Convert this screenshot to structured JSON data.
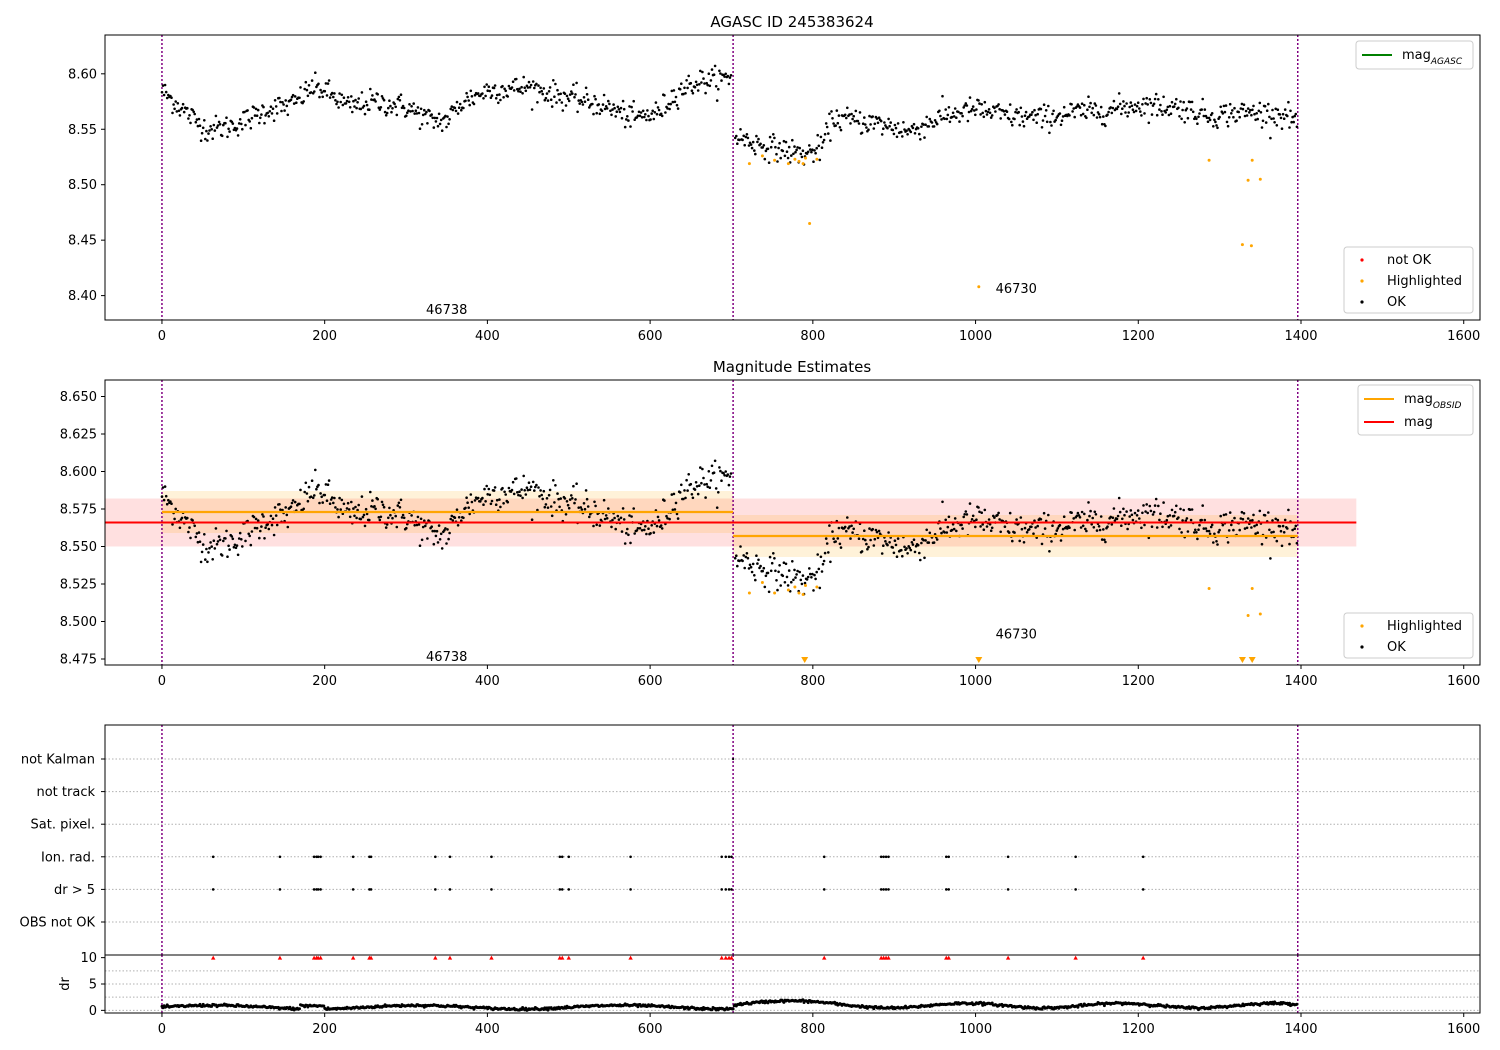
{
  "figure": {
    "colors": {
      "ok": "#000000",
      "highlighted": "#ffa500",
      "not_ok": "#ff0000",
      "mag_agasc": "#008000",
      "obsid_band": "#ffa500",
      "mag_band": "#ff0000",
      "obs_boundary": "#800080",
      "grid": "#b0b0b0"
    }
  },
  "chart_data": [
    {
      "id": "top",
      "type": "scatter",
      "title": "AGASC ID 245383624",
      "xlim": [
        -70,
        1620
      ],
      "ylim": [
        8.378,
        8.635
      ],
      "xticks": [
        0,
        200,
        400,
        600,
        800,
        1000,
        1200,
        1400,
        1600
      ],
      "yticks": [
        8.4,
        8.45,
        8.5,
        8.55,
        8.6
      ],
      "ytick_labels": [
        "8.40",
        "8.45",
        "8.50",
        "8.55",
        "8.60"
      ],
      "obs_boundaries": [
        0,
        702,
        1396
      ],
      "obs_labels": [
        {
          "text": "46738",
          "x": 350,
          "y": 8.388
        },
        {
          "text": "46730",
          "x": 1050,
          "y": 8.407
        }
      ],
      "legend_top": {
        "entries": [
          "mag_AGASC"
        ],
        "location": "top-right"
      },
      "legend_bottom": {
        "entries": [
          "not OK",
          "Highlighted",
          "OK"
        ],
        "location": "lower-right"
      },
      "highlighted_points": [
        [
          722,
          8.519
        ],
        [
          738,
          8.526
        ],
        [
          753,
          8.522
        ],
        [
          770,
          8.519
        ],
        [
          778,
          8.523
        ],
        [
          783,
          8.521
        ],
        [
          788,
          8.519
        ],
        [
          791,
          8.524
        ],
        [
          796,
          8.465
        ],
        [
          805,
          8.523
        ],
        [
          1004,
          8.408
        ],
        [
          1287,
          8.522
        ],
        [
          1328,
          8.446
        ],
        [
          1335,
          8.504
        ],
        [
          1339,
          8.445
        ],
        [
          1340,
          8.522
        ],
        [
          1350,
          8.505
        ]
      ]
    },
    {
      "id": "middle",
      "type": "scatter",
      "title": "Magnitude Estimates",
      "xlim": [
        -70,
        1620
      ],
      "ylim": [
        8.471,
        8.661
      ],
      "xticks": [
        0,
        200,
        400,
        600,
        800,
        1000,
        1200,
        1400,
        1600
      ],
      "yticks": [
        8.475,
        8.5,
        8.525,
        8.55,
        8.575,
        8.6,
        8.625,
        8.65
      ],
      "ytick_labels": [
        "8.475",
        "8.500",
        "8.525",
        "8.550",
        "8.575",
        "8.600",
        "8.625",
        "8.650"
      ],
      "obs_boundaries": [
        0,
        702,
        1396
      ],
      "obs_labels": [
        {
          "text": "46738",
          "x": 350,
          "y": 8.477
        },
        {
          "text": "46730",
          "x": 1050,
          "y": 8.492
        }
      ],
      "mag": {
        "value": 8.566,
        "band": [
          8.55,
          8.582
        ],
        "x_range": [
          -70,
          1468
        ]
      },
      "obsid_segments": [
        {
          "x0": 0,
          "x1": 702,
          "mag": 8.573,
          "band": [
            8.559,
            8.587
          ]
        },
        {
          "x0": 702,
          "x1": 1396,
          "mag": 8.557,
          "band": [
            8.543,
            8.571
          ]
        }
      ],
      "legend_top": {
        "entries": [
          "mag_OBSID",
          "mag"
        ],
        "location": "top-right"
      },
      "legend_bottom": {
        "entries": [
          "Highlighted",
          "OK"
        ],
        "location": "lower-right"
      },
      "highlighted_points": [
        [
          722,
          8.519
        ],
        [
          738,
          8.526
        ],
        [
          753,
          8.519
        ],
        [
          770,
          8.521
        ],
        [
          778,
          8.523
        ],
        [
          783,
          8.519
        ],
        [
          788,
          8.518
        ],
        [
          791,
          8.524
        ],
        [
          805,
          8.523
        ],
        [
          1287,
          8.522
        ],
        [
          1335,
          8.504
        ],
        [
          1340,
          8.522
        ],
        [
          1350,
          8.505
        ]
      ],
      "lower_limit_markers_x": [
        790,
        1004,
        1328,
        1340
      ]
    },
    {
      "id": "flags",
      "type": "scatter",
      "xlim": [
        -70,
        1620
      ],
      "yticks": [
        "not Kalman",
        "not track",
        "Sat. pixel.",
        "Ion. rad.",
        "dr > 5",
        "OBS not OK"
      ],
      "obs_boundaries": [
        0,
        702,
        1396
      ],
      "flag_x": [
        63,
        145,
        187,
        190,
        192,
        195,
        235,
        255,
        257,
        336,
        354,
        405,
        489,
        492,
        500,
        576,
        688,
        693,
        697,
        700,
        814,
        884,
        887,
        890,
        893,
        964,
        967,
        1040,
        1123,
        1206
      ]
    },
    {
      "id": "dr",
      "type": "line",
      "ylabel": "dr",
      "xlim": [
        -70,
        1620
      ],
      "ylim": [
        -0.5,
        10.5
      ],
      "yticks": [
        0,
        5,
        10
      ],
      "xticks": [
        0,
        200,
        400,
        600,
        800,
        1000,
        1200,
        1400,
        1600
      ],
      "obs_boundaries": [
        0,
        702,
        1396
      ],
      "dr_max_display": 10
    }
  ]
}
